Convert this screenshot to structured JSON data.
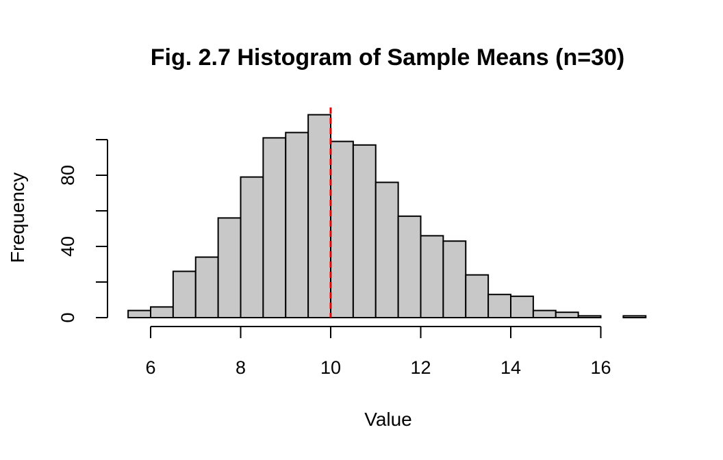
{
  "chart_data": {
    "type": "bar",
    "title": "Fig. 2.7 Histogram of Sample Means (n=30)",
    "xlabel": "Value",
    "ylabel": "Frequency",
    "bins": [
      {
        "start": 5.5,
        "end": 6.0,
        "count": 4
      },
      {
        "start": 6.0,
        "end": 6.5,
        "count": 6
      },
      {
        "start": 6.5,
        "end": 7.0,
        "count": 26
      },
      {
        "start": 7.0,
        "end": 7.5,
        "count": 34
      },
      {
        "start": 7.5,
        "end": 8.0,
        "count": 56
      },
      {
        "start": 8.0,
        "end": 8.5,
        "count": 79
      },
      {
        "start": 8.5,
        "end": 9.0,
        "count": 101
      },
      {
        "start": 9.0,
        "end": 9.5,
        "count": 104
      },
      {
        "start": 9.5,
        "end": 10.0,
        "count": 114
      },
      {
        "start": 10.0,
        "end": 10.5,
        "count": 99
      },
      {
        "start": 10.5,
        "end": 11.0,
        "count": 97
      },
      {
        "start": 11.0,
        "end": 11.5,
        "count": 76
      },
      {
        "start": 11.5,
        "end": 12.0,
        "count": 57
      },
      {
        "start": 12.0,
        "end": 12.5,
        "count": 46
      },
      {
        "start": 12.5,
        "end": 13.0,
        "count": 43
      },
      {
        "start": 13.0,
        "end": 13.5,
        "count": 24
      },
      {
        "start": 13.5,
        "end": 14.0,
        "count": 13
      },
      {
        "start": 14.0,
        "end": 14.5,
        "count": 12
      },
      {
        "start": 14.5,
        "end": 15.0,
        "count": 4
      },
      {
        "start": 15.0,
        "end": 15.5,
        "count": 3
      },
      {
        "start": 15.5,
        "end": 16.0,
        "count": 1
      },
      {
        "start": 16.0,
        "end": 16.5,
        "count": 0
      },
      {
        "start": 16.5,
        "end": 17.0,
        "count": 1
      }
    ],
    "xlim": [
      5.5,
      17.0
    ],
    "ylim": [
      0,
      114
    ],
    "x_ticks": [
      6,
      8,
      10,
      12,
      14,
      16
    ],
    "y_ticks": [
      0,
      20,
      40,
      60,
      80,
      100
    ],
    "y_tick_labels": [
      "0",
      "",
      "40",
      "",
      "80",
      ""
    ],
    "reference_line": {
      "x": 10,
      "color": "#ee0000",
      "style": "dashed"
    },
    "bar_fill": "#c8c8c8",
    "bar_stroke": "#000000",
    "grid": false
  }
}
